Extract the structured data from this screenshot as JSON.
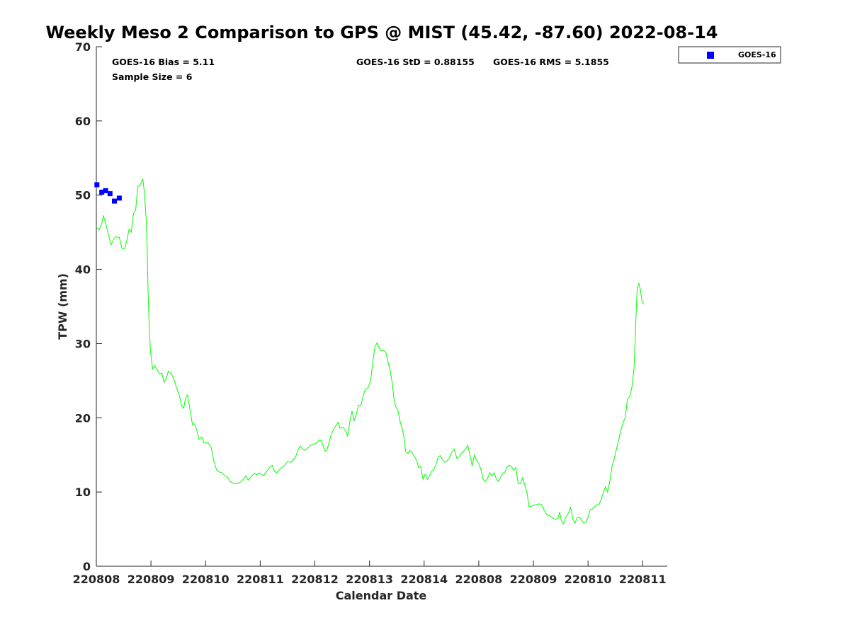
{
  "chart_data": {
    "type": "line",
    "title": "Weekly Meso 2 Comparison to GPS @ MIST (45.42, -87.60) 2022-08-14",
    "xlabel": "Calendar Date",
    "ylabel": "TPW (mm)",
    "ylim": [
      0,
      70
    ],
    "yticks": [
      "0",
      "10",
      "20",
      "30",
      "40",
      "50",
      "60",
      "70"
    ],
    "xlim": [
      0,
      10.45
    ],
    "xticks": [
      {
        "x": 0,
        "label": "220808"
      },
      {
        "x": 1,
        "label": "220809"
      },
      {
        "x": 2,
        "label": "220810"
      },
      {
        "x": 3,
        "label": "220811"
      },
      {
        "x": 4,
        "label": "220812"
      },
      {
        "x": 5,
        "label": "220813"
      },
      {
        "x": 6,
        "label": "220814"
      },
      {
        "x": 7,
        "label": "220808"
      },
      {
        "x": 8,
        "label": "220809"
      },
      {
        "x": 9,
        "label": "220810"
      },
      {
        "x": 10,
        "label": "220811"
      }
    ],
    "grid": false,
    "legend_position": "top-right",
    "stats": {
      "bias": "GOES-16 Bias = 5.11",
      "sample": "Sample Size = 6",
      "std": "GOES-16 StD = 0.88155",
      "rms": "GOES-16 RMS = 5.1855"
    },
    "series": [
      {
        "name": "GOES-16",
        "kind": "scatter",
        "color": "#0000ff",
        "points": [
          [
            0.01,
            51.4
          ],
          [
            0.1,
            50.4
          ],
          [
            0.17,
            50.6
          ],
          [
            0.25,
            50.2
          ],
          [
            0.33,
            49.2
          ],
          [
            0.42,
            49.6
          ]
        ]
      },
      {
        "kind": "line",
        "color": "#00ff00",
        "points": [
          [
            0.0,
            45.7
          ],
          [
            0.05,
            45.3
          ],
          [
            0.1,
            46.2
          ],
          [
            0.13,
            47.2
          ],
          [
            0.18,
            46.0
          ],
          [
            0.22,
            44.7
          ],
          [
            0.27,
            43.3
          ],
          [
            0.3,
            43.8
          ],
          [
            0.35,
            44.4
          ],
          [
            0.42,
            44.3
          ],
          [
            0.47,
            42.8
          ],
          [
            0.52,
            42.8
          ],
          [
            0.56,
            44.0
          ],
          [
            0.6,
            45.4
          ],
          [
            0.64,
            45.0
          ],
          [
            0.68,
            47.5
          ],
          [
            0.72,
            48.0
          ],
          [
            0.76,
            51.2
          ],
          [
            0.8,
            51.3
          ],
          [
            0.85,
            52.2
          ],
          [
            0.88,
            50.3
          ],
          [
            0.91,
            47.0
          ],
          [
            0.93,
            43.0
          ],
          [
            0.95,
            36.0
          ],
          [
            0.97,
            32.0
          ],
          [
            0.99,
            29.0
          ],
          [
            1.03,
            26.6
          ],
          [
            1.07,
            27.0
          ],
          [
            1.12,
            26.4
          ],
          [
            1.16,
            25.9
          ],
          [
            1.2,
            26.0
          ],
          [
            1.24,
            24.8
          ],
          [
            1.28,
            25.3
          ],
          [
            1.32,
            26.3
          ],
          [
            1.37,
            26.0
          ],
          [
            1.42,
            25.2
          ],
          [
            1.47,
            24.0
          ],
          [
            1.52,
            23.0
          ],
          [
            1.56,
            21.6
          ],
          [
            1.6,
            21.3
          ],
          [
            1.63,
            22.6
          ],
          [
            1.67,
            23.1
          ],
          [
            1.72,
            20.8
          ],
          [
            1.76,
            19.1
          ],
          [
            1.8,
            19.2
          ],
          [
            1.84,
            18.3
          ],
          [
            1.88,
            17.1
          ],
          [
            1.93,
            17.4
          ],
          [
            1.97,
            16.6
          ],
          [
            2.05,
            16.6
          ],
          [
            2.1,
            16.0
          ],
          [
            2.15,
            14.2
          ],
          [
            2.2,
            13.0
          ],
          [
            2.25,
            12.7
          ],
          [
            2.3,
            12.6
          ],
          [
            2.35,
            12.2
          ],
          [
            2.4,
            12.0
          ],
          [
            2.45,
            11.4
          ],
          [
            2.5,
            11.2
          ],
          [
            2.55,
            11.1
          ],
          [
            2.6,
            11.2
          ],
          [
            2.65,
            11.4
          ],
          [
            2.7,
            11.8
          ],
          [
            2.74,
            12.2
          ],
          [
            2.78,
            11.6
          ],
          [
            2.82,
            11.9
          ],
          [
            2.86,
            12.3
          ],
          [
            2.9,
            12.5
          ],
          [
            2.94,
            12.3
          ],
          [
            2.98,
            12.6
          ],
          [
            3.02,
            12.4
          ],
          [
            3.06,
            12.2
          ],
          [
            3.1,
            12.6
          ],
          [
            3.14,
            13.0
          ],
          [
            3.18,
            13.4
          ],
          [
            3.22,
            13.6
          ],
          [
            3.26,
            12.8
          ],
          [
            3.3,
            12.6
          ],
          [
            3.35,
            13.0
          ],
          [
            3.4,
            13.3
          ],
          [
            3.45,
            13.6
          ],
          [
            3.5,
            14.1
          ],
          [
            3.55,
            14.0
          ],
          [
            3.6,
            14.3
          ],
          [
            3.65,
            14.8
          ],
          [
            3.7,
            15.8
          ],
          [
            3.73,
            16.2
          ],
          [
            3.77,
            15.8
          ],
          [
            3.82,
            15.6
          ],
          [
            3.87,
            15.9
          ],
          [
            3.92,
            16.3
          ],
          [
            3.97,
            16.4
          ],
          [
            4.03,
            16.6
          ],
          [
            4.08,
            17.0
          ],
          [
            4.12,
            16.9
          ],
          [
            4.16,
            16.0
          ],
          [
            4.19,
            15.5
          ],
          [
            4.22,
            15.6
          ],
          [
            4.26,
            16.7
          ],
          [
            4.3,
            17.8
          ],
          [
            4.35,
            18.5
          ],
          [
            4.4,
            19.1
          ],
          [
            4.43,
            19.4
          ],
          [
            4.46,
            18.6
          ],
          [
            4.52,
            18.7
          ],
          [
            4.57,
            18.2
          ],
          [
            4.6,
            17.5
          ],
          [
            4.64,
            19.5
          ],
          [
            4.68,
            20.9
          ],
          [
            4.72,
            19.6
          ],
          [
            4.76,
            20.5
          ],
          [
            4.8,
            21.7
          ],
          [
            4.84,
            21.6
          ],
          [
            4.88,
            22.8
          ],
          [
            4.92,
            23.8
          ],
          [
            4.97,
            24.0
          ],
          [
            5.02,
            25.0
          ],
          [
            5.06,
            27.5
          ],
          [
            5.1,
            29.6
          ],
          [
            5.14,
            30.1
          ],
          [
            5.18,
            29.4
          ],
          [
            5.22,
            29.0
          ],
          [
            5.26,
            29.1
          ],
          [
            5.3,
            28.8
          ],
          [
            5.34,
            27.5
          ],
          [
            5.38,
            26.3
          ],
          [
            5.42,
            24.5
          ],
          [
            5.45,
            22.4
          ],
          [
            5.48,
            21.5
          ],
          [
            5.52,
            21.0
          ],
          [
            5.56,
            19.5
          ],
          [
            5.6,
            18.5
          ],
          [
            5.63,
            17.5
          ],
          [
            5.66,
            15.5
          ],
          [
            5.7,
            15.2
          ],
          [
            5.74,
            15.6
          ],
          [
            5.78,
            15.3
          ],
          [
            5.82,
            14.8
          ],
          [
            5.86,
            14.3
          ],
          [
            5.9,
            13.3
          ],
          [
            5.94,
            13.4
          ],
          [
            5.98,
            11.7
          ],
          [
            6.02,
            12.4
          ],
          [
            6.06,
            11.7
          ],
          [
            6.1,
            12.2
          ],
          [
            6.14,
            12.8
          ],
          [
            6.18,
            13.1
          ],
          [
            6.22,
            13.7
          ],
          [
            6.26,
            14.8
          ],
          [
            6.3,
            14.9
          ],
          [
            6.34,
            14.3
          ],
          [
            6.38,
            14.0
          ],
          [
            6.42,
            14.2
          ],
          [
            6.46,
            14.6
          ],
          [
            6.5,
            15.3
          ],
          [
            6.55,
            15.8
          ],
          [
            6.6,
            14.5
          ],
          [
            6.64,
            14.7
          ],
          [
            6.68,
            15.2
          ],
          [
            6.72,
            15.5
          ],
          [
            6.76,
            15.8
          ],
          [
            6.8,
            16.3
          ],
          [
            6.84,
            14.9
          ],
          [
            6.88,
            13.5
          ],
          [
            6.92,
            15.0
          ],
          [
            6.96,
            14.3
          ],
          [
            7.0,
            13.8
          ],
          [
            7.04,
            13.0
          ],
          [
            7.08,
            11.7
          ],
          [
            7.12,
            11.4
          ],
          [
            7.16,
            11.8
          ],
          [
            7.2,
            12.6
          ],
          [
            7.24,
            12.2
          ],
          [
            7.28,
            12.6
          ],
          [
            7.32,
            11.8
          ],
          [
            7.36,
            11.4
          ],
          [
            7.4,
            12.0
          ],
          [
            7.44,
            12.5
          ],
          [
            7.48,
            12.7
          ],
          [
            7.52,
            13.4
          ],
          [
            7.56,
            13.6
          ],
          [
            7.6,
            13.4
          ],
          [
            7.64,
            12.9
          ],
          [
            7.68,
            13.3
          ],
          [
            7.72,
            11.2
          ],
          [
            7.76,
            11.1
          ],
          [
            7.8,
            11.9
          ],
          [
            7.84,
            11.0
          ],
          [
            7.88,
            10.0
          ],
          [
            7.92,
            8.0
          ],
          [
            7.96,
            8.1
          ],
          [
            8.0,
            8.2
          ],
          [
            8.05,
            8.3
          ],
          [
            8.1,
            8.4
          ],
          [
            8.15,
            8.3
          ],
          [
            8.2,
            7.5
          ],
          [
            8.25,
            6.9
          ],
          [
            8.3,
            6.8
          ],
          [
            8.35,
            6.5
          ],
          [
            8.4,
            6.3
          ],
          [
            8.45,
            6.4
          ],
          [
            8.48,
            7.3
          ],
          [
            8.51,
            6.2
          ],
          [
            8.55,
            5.7
          ],
          [
            8.58,
            6.4
          ],
          [
            8.62,
            6.9
          ],
          [
            8.65,
            7.3
          ],
          [
            8.68,
            8.0
          ],
          [
            8.72,
            6.4
          ],
          [
            8.76,
            5.8
          ],
          [
            8.8,
            6.5
          ],
          [
            8.84,
            6.6
          ],
          [
            8.88,
            6.2
          ],
          [
            8.92,
            5.8
          ],
          [
            8.96,
            5.9
          ],
          [
            9.0,
            6.6
          ],
          [
            9.04,
            7.6
          ],
          [
            9.08,
            7.7
          ],
          [
            9.12,
            8.0
          ],
          [
            9.16,
            8.3
          ],
          [
            9.2,
            8.3
          ],
          [
            9.24,
            9.0
          ],
          [
            9.28,
            9.9
          ],
          [
            9.32,
            10.7
          ],
          [
            9.36,
            10.0
          ],
          [
            9.4,
            11.5
          ],
          [
            9.44,
            13.5
          ],
          [
            9.48,
            14.5
          ],
          [
            9.52,
            15.8
          ],
          [
            9.56,
            17.0
          ],
          [
            9.6,
            18.3
          ],
          [
            9.64,
            19.3
          ],
          [
            9.68,
            20.0
          ],
          [
            9.72,
            22.5
          ],
          [
            9.76,
            22.8
          ],
          [
            9.8,
            24.0
          ],
          [
            9.84,
            26.5
          ],
          [
            9.86,
            30.0
          ],
          [
            9.88,
            34.0
          ],
          [
            9.9,
            37.5
          ],
          [
            9.93,
            38.1
          ],
          [
            9.96,
            37.2
          ],
          [
            9.99,
            35.6
          ],
          [
            10.02,
            35.3
          ]
        ]
      }
    ]
  }
}
